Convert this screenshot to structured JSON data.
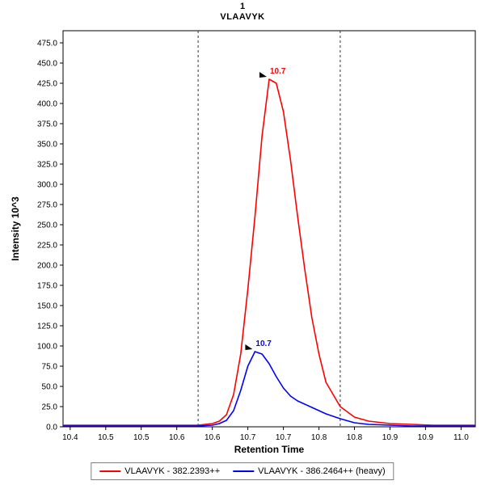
{
  "header": {
    "line1": "1",
    "line2": "VLAAVYK"
  },
  "chart_data": {
    "type": "line",
    "title": "1 VLAAVYK",
    "xlabel": "Retention Time",
    "ylabel": "Intensity 10^3",
    "grid": false,
    "legend_position": "bottom",
    "xlim": [
      10.39,
      10.97
    ],
    "ylim": [
      0,
      490
    ],
    "xticks": [
      10.4,
      10.45,
      10.5,
      10.55,
      10.6,
      10.65,
      10.7,
      10.75,
      10.8,
      10.85,
      10.9,
      10.95
    ],
    "xtick_labels": [
      "10.4",
      "10.5",
      "10.5",
      "10.6",
      "10.6",
      "10.7",
      "10.7",
      "10.8",
      "10.8",
      "10.9",
      "10.9",
      "11.0"
    ],
    "yticks": [
      0,
      25,
      50,
      75,
      100,
      125,
      150,
      175,
      200,
      225,
      250,
      275,
      300,
      325,
      350,
      375,
      400,
      425,
      450,
      475
    ],
    "boundaries": [
      10.58,
      10.78
    ],
    "x": [
      10.39,
      10.42,
      10.45,
      10.48,
      10.51,
      10.54,
      10.56,
      10.58,
      10.6,
      10.61,
      10.62,
      10.63,
      10.64,
      10.65,
      10.66,
      10.67,
      10.68,
      10.69,
      10.7,
      10.71,
      10.72,
      10.73,
      10.74,
      10.75,
      10.76,
      10.78,
      10.8,
      10.82,
      10.85,
      10.88,
      10.91,
      10.94,
      10.97
    ],
    "series": [
      {
        "name": "VLAAVYK - 382.2393++",
        "color": "#ff0000",
        "values": [
          2,
          2,
          2,
          2,
          2,
          2,
          2,
          2,
          4,
          7,
          15,
          40,
          90,
          170,
          260,
          360,
          430,
          425,
          390,
          330,
          260,
          195,
          135,
          90,
          55,
          25,
          12,
          7,
          4,
          3,
          2,
          2,
          2
        ],
        "peak_annotation": {
          "label": "10.7",
          "x": 10.68,
          "y": 430
        }
      },
      {
        "name": "VLAAVYK - 386.2464++ (heavy)",
        "color": "#0000ff",
        "values": [
          1,
          1,
          1,
          1,
          1,
          1,
          1,
          1,
          2,
          4,
          8,
          20,
          45,
          75,
          93,
          90,
          78,
          62,
          48,
          38,
          32,
          28,
          24,
          20,
          16,
          10,
          5,
          3,
          2,
          1,
          1,
          1,
          1
        ],
        "peak_annotation": {
          "label": "10.7",
          "x": 10.66,
          "y": 93
        }
      }
    ]
  },
  "legend": {
    "items": [
      {
        "label": "VLAAVYK - 382.2393++",
        "color": "#ff0000"
      },
      {
        "label": "VLAAVYK - 386.2464++ (heavy)",
        "color": "#0000ff"
      }
    ]
  }
}
